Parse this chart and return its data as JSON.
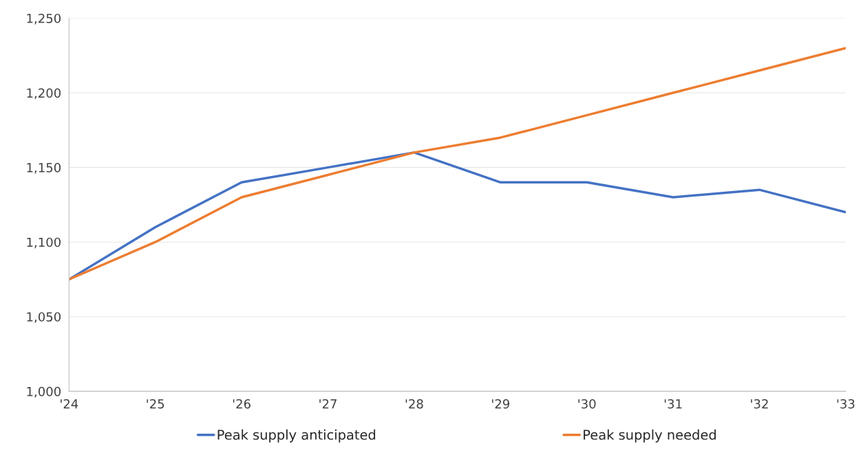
{
  "chart_data": {
    "type": "line",
    "categories": [
      "'24",
      "'25",
      "'26",
      "'27",
      "'28",
      "'29",
      "'30",
      "'31",
      "'32",
      "'33"
    ],
    "series": [
      {
        "name": "Peak supply anticipated",
        "color": "#4472c4",
        "values": [
          1075,
          1110,
          1140,
          1150,
          1160,
          1140,
          1140,
          1130,
          1135,
          1120
        ]
      },
      {
        "name": "Peak supply needed",
        "color": "#ed7d31",
        "values": [
          1075,
          1100,
          1130,
          1145,
          1160,
          1170,
          1185,
          1200,
          1215,
          1230
        ]
      }
    ],
    "ylim": [
      1000,
      1250
    ],
    "yticks": [
      {
        "value": 1000,
        "label": "1,000"
      },
      {
        "value": 1050,
        "label": "1,050"
      },
      {
        "value": 1100,
        "label": "1,100"
      },
      {
        "value": 1150,
        "label": "1,150"
      },
      {
        "value": 1200,
        "label": "1,200"
      },
      {
        "value": 1250,
        "label": "1,250"
      }
    ],
    "grid": "y",
    "legend": "bottom",
    "marker": "none",
    "line_style": "solid"
  }
}
